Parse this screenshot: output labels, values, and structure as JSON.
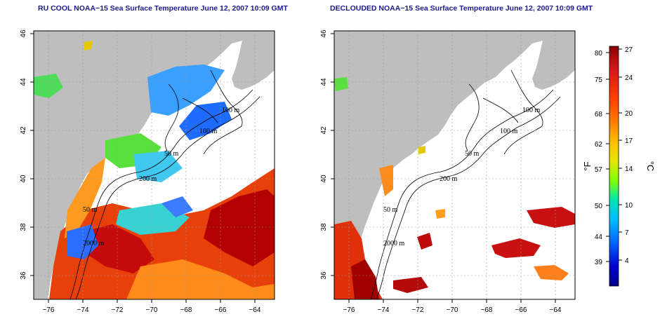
{
  "titles": {
    "left": "RU COOL NOAA−15 Sea Surface Temperature June 12, 2007 10:09 GMT",
    "right": "DECLOUDED NOAA−15 Sea Surface Temperature June 12, 2007 10:09 GMT"
  },
  "map": {
    "lon_ticks": [
      "−76",
      "−74",
      "−72",
      "−70",
      "−68",
      "−66",
      "−64"
    ],
    "lat_ticks": [
      "46",
      "44",
      "42",
      "40",
      "38",
      "36"
    ],
    "contour_labels": [
      "100 m",
      "100 m",
      "50 m",
      "200 m",
      "50 m",
      "2000 m"
    ]
  },
  "colorbar": {
    "fahrenheit_label": "°F",
    "celsius_label": "°C",
    "fahrenheit_ticks": [
      "80",
      "75",
      "68",
      "62",
      "57",
      "50",
      "44",
      "39"
    ],
    "celsius_ticks": [
      "27",
      "24",
      "20",
      "17",
      "14",
      "10",
      "7",
      "4"
    ],
    "colors": [
      "#8b0000",
      "#d7191c",
      "#ff4000",
      "#ff8000",
      "#ffbf00",
      "#e6e600",
      "#80ff00",
      "#00e6b0",
      "#00bfff",
      "#0064ff",
      "#0000cd",
      "#00008b"
    ]
  },
  "colors": {
    "land": "#bebebe",
    "ocean": "#ffffff",
    "contour": "#000000"
  }
}
